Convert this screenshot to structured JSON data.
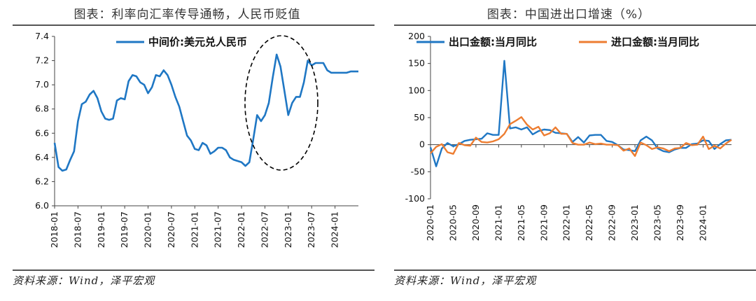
{
  "left": {
    "title": "图表：利率向汇率传导通畅，人民币贬值",
    "source": "资料来源：Wind，泽平宏观",
    "chart_data": {
      "type": "line",
      "title": "图表：利率向汇率传导通畅，人民币贬值",
      "xlabel": "",
      "ylabel": "",
      "ylim": [
        6.0,
        7.4
      ],
      "yticks": [
        6.0,
        6.2,
        6.4,
        6.6,
        6.8,
        7.0,
        7.2,
        7.4
      ],
      "ytick_labels": [
        "6.0",
        "6.2",
        "6.4",
        "6.6",
        "6.8",
        "7.0",
        "7.2",
        "7.4"
      ],
      "xlim": [
        "2018-01",
        "2024-07"
      ],
      "xtick_labels": [
        "2018-01",
        "2018-07",
        "2019-01",
        "2019-07",
        "2020-01",
        "2020-07",
        "2021-01",
        "2021-07",
        "2022-01",
        "2022-07",
        "2023-01",
        "2023-07",
        "2024-01"
      ],
      "legend_position": "top",
      "colors": {
        "line": "#1f77c4",
        "ellipse": "#000000"
      },
      "annotation": "dashed ellipse around 2022-03 to 2023-05",
      "series": [
        {
          "name": "中间价:美元兑人民币",
          "x": [
            "2018-01",
            "2018-02",
            "2018-03",
            "2018-04",
            "2018-05",
            "2018-06",
            "2018-07",
            "2018-08",
            "2018-09",
            "2018-10",
            "2018-11",
            "2018-12",
            "2019-01",
            "2019-02",
            "2019-03",
            "2019-04",
            "2019-05",
            "2019-06",
            "2019-07",
            "2019-08",
            "2019-09",
            "2019-10",
            "2019-11",
            "2019-12",
            "2020-01",
            "2020-02",
            "2020-03",
            "2020-04",
            "2020-05",
            "2020-06",
            "2020-07",
            "2020-08",
            "2020-09",
            "2020-10",
            "2020-11",
            "2020-12",
            "2021-01",
            "2021-02",
            "2021-03",
            "2021-04",
            "2021-05",
            "2021-06",
            "2021-07",
            "2021-08",
            "2021-09",
            "2021-10",
            "2021-11",
            "2021-12",
            "2022-01",
            "2022-02",
            "2022-03",
            "2022-04",
            "2022-05",
            "2022-06",
            "2022-07",
            "2022-08",
            "2022-09",
            "2022-10",
            "2022-11",
            "2022-12",
            "2023-01",
            "2023-02",
            "2023-03",
            "2023-04",
            "2023-05",
            "2023-06",
            "2023-07",
            "2023-08",
            "2023-09",
            "2023-10",
            "2023-11",
            "2023-12",
            "2024-01",
            "2024-02",
            "2024-03",
            "2024-04",
            "2024-05",
            "2024-06",
            "2024-07"
          ],
          "values": [
            6.52,
            6.32,
            6.29,
            6.3,
            6.38,
            6.45,
            6.7,
            6.84,
            6.86,
            6.92,
            6.95,
            6.89,
            6.78,
            6.72,
            6.71,
            6.72,
            6.87,
            6.89,
            6.88,
            7.03,
            7.08,
            7.07,
            7.02,
            7.0,
            6.93,
            6.98,
            7.08,
            7.07,
            7.12,
            7.08,
            7.0,
            6.9,
            6.82,
            6.7,
            6.58,
            6.54,
            6.47,
            6.46,
            6.52,
            6.5,
            6.43,
            6.45,
            6.48,
            6.48,
            6.46,
            6.4,
            6.38,
            6.37,
            6.36,
            6.33,
            6.36,
            6.55,
            6.75,
            6.7,
            6.75,
            6.85,
            7.06,
            7.25,
            7.15,
            6.95,
            6.75,
            6.85,
            6.9,
            6.9,
            7.02,
            7.2,
            7.16,
            7.18,
            7.18,
            7.18,
            7.12,
            7.1,
            7.1,
            7.1,
            7.1,
            7.1,
            7.11,
            7.11,
            7.11
          ]
        }
      ]
    }
  },
  "right": {
    "title": "图表：中国进出口增速（%）",
    "source": "资料来源：Wind，泽平宏观",
    "chart_data": {
      "type": "line",
      "title": "图表：中国进出口增速（%）",
      "xlabel": "",
      "ylabel": "",
      "ylim": [
        -100,
        200
      ],
      "yticks": [
        -100,
        -50,
        0,
        50,
        100,
        150,
        200
      ],
      "ytick_labels": [
        "-100",
        "-50",
        "0",
        "50",
        "100",
        "150",
        "200"
      ],
      "xlim": [
        "2020-01",
        "2024-06"
      ],
      "xtick_labels": [
        "2020-01",
        "2020-05",
        "2020-09",
        "2021-01",
        "2021-05",
        "2021-09",
        "2022-01",
        "2022-05",
        "2022-09",
        "2023-01",
        "2023-05",
        "2023-09",
        "2024-01"
      ],
      "legend_position": "top",
      "colors": {
        "export": "#1f77c4",
        "import": "#ed7d31"
      },
      "x": [
        "2020-01",
        "2020-02",
        "2020-03",
        "2020-04",
        "2020-05",
        "2020-06",
        "2020-07",
        "2020-08",
        "2020-09",
        "2020-10",
        "2020-11",
        "2020-12",
        "2021-01",
        "2021-02",
        "2021-03",
        "2021-04",
        "2021-05",
        "2021-06",
        "2021-07",
        "2021-08",
        "2021-09",
        "2021-10",
        "2021-11",
        "2021-12",
        "2022-01",
        "2022-02",
        "2022-03",
        "2022-04",
        "2022-05",
        "2022-06",
        "2022-07",
        "2022-08",
        "2022-09",
        "2022-10",
        "2022-11",
        "2022-12",
        "2023-01",
        "2023-02",
        "2023-03",
        "2023-04",
        "2023-05",
        "2023-06",
        "2023-07",
        "2023-08",
        "2023-09",
        "2023-10",
        "2023-11",
        "2023-12",
        "2024-01",
        "2024-02",
        "2024-03",
        "2024-04",
        "2024-05",
        "2024-06"
      ],
      "series": [
        {
          "name": "出口金额:当月同比",
          "values": [
            -5,
            -40,
            -7,
            3,
            -3,
            1,
            7,
            9,
            10,
            11,
            21,
            18,
            18,
            155,
            30,
            32,
            28,
            32,
            19,
            25,
            28,
            27,
            22,
            21,
            20,
            5,
            14,
            4,
            17,
            18,
            18,
            7,
            5,
            -1,
            -9,
            -10,
            -12,
            8,
            15,
            8,
            -7,
            -12,
            -14,
            -9,
            -6,
            -6,
            1,
            2,
            8,
            7,
            -8,
            1,
            8,
            9
          ]
        },
        {
          "name": "进口金额:当月同比",
          "values": [
            -16,
            -4,
            1,
            -14,
            -17,
            3,
            -1,
            -2,
            13,
            5,
            4,
            6,
            10,
            20,
            38,
            44,
            51,
            37,
            28,
            33,
            17,
            21,
            32,
            20,
            20,
            3,
            0,
            0,
            4,
            1,
            2,
            0,
            0,
            -1,
            -11,
            -7,
            -21,
            4,
            -1,
            -8,
            -5,
            -7,
            -12,
            -7,
            -6,
            3,
            -1,
            0,
            15,
            -8,
            -2,
            -7,
            2,
            9
          ]
        }
      ]
    }
  }
}
